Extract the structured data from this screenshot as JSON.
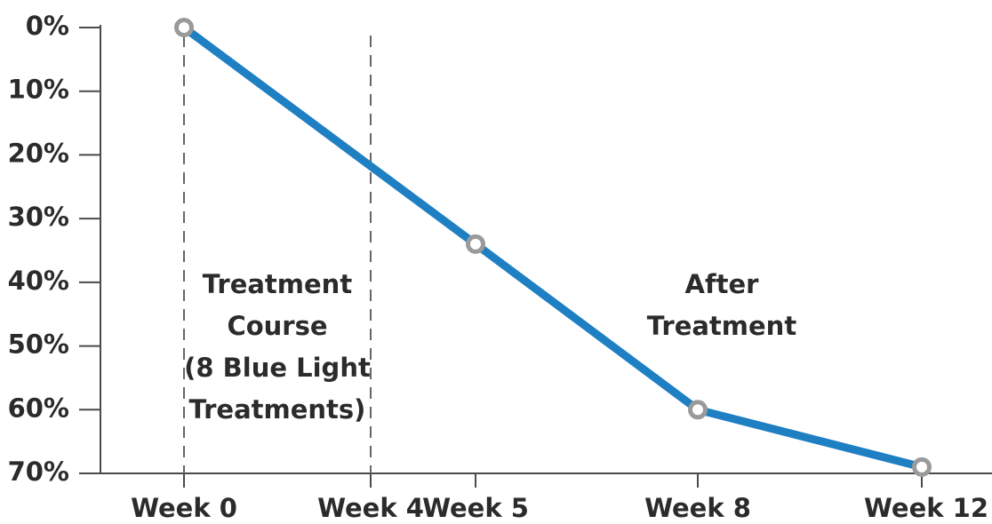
{
  "chart_data": {
    "type": "line",
    "y_tick_labels": [
      "0%",
      "10%",
      "20%",
      "30%",
      "40%",
      "50%",
      "60%",
      "70%"
    ],
    "x_tick_labels": [
      "Week 0",
      "Week 4",
      "Week 5",
      "Week 8",
      "Week 12"
    ],
    "ylim": [
      0,
      70
    ],
    "y_inverted": true,
    "grid": false,
    "series": [
      {
        "x": [
          0,
          5,
          8,
          12
        ],
        "values": [
          0,
          34,
          60,
          69
        ],
        "color": "#1f7fc3",
        "marker": "hollow-circle",
        "marker_color": "#9a9a9a"
      }
    ],
    "dividers": [
      0,
      4
    ],
    "region_labels": {
      "treatment": [
        "Treatment",
        "Course",
        "(8 Blue Light",
        "Treatments)"
      ],
      "after": [
        "After",
        "Treatment"
      ]
    }
  }
}
